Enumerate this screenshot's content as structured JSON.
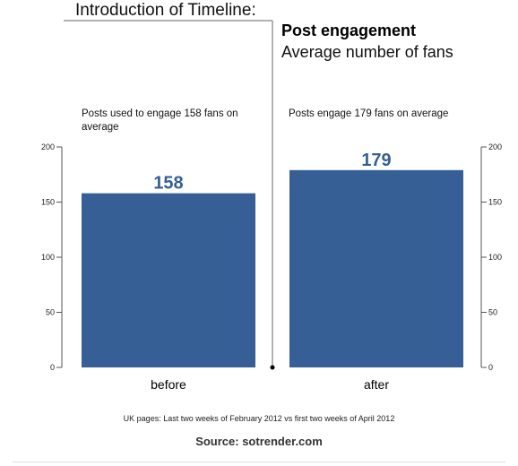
{
  "header": {
    "title": "Introduction of Timeline:",
    "chart_title": "Post engagement",
    "chart_subtitle": "Average number of fans"
  },
  "annotations": {
    "before": "Posts used to engage 158 fans on average",
    "after": "Posts engage 179 fans on average"
  },
  "footer": {
    "note": "UK pages: Last two weeks of February 2012 vs first two weeks of April 2012",
    "source": "Source: sotrender.com"
  },
  "colors": {
    "bar": "#355f95",
    "label": "#355f95",
    "axis": "#555555"
  },
  "chart_data": {
    "type": "bar",
    "categories": [
      "before",
      "after"
    ],
    "values": [
      158,
      179
    ],
    "data_labels": [
      "158",
      "179"
    ],
    "title": "Post engagement",
    "subtitle": "Average number of fans",
    "xlabel": "",
    "ylabel": "",
    "ylim": [
      0,
      200
    ],
    "yticks": [
      0,
      50,
      100,
      150,
      200
    ],
    "y_axes": "both",
    "grid": false,
    "legend": "none"
  }
}
